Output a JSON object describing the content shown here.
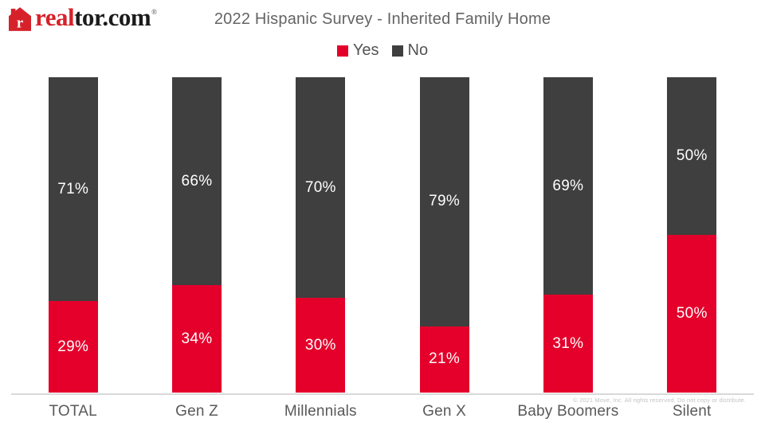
{
  "header": {
    "logo": {
      "icon_letter": "r",
      "brand_red": "real",
      "brand_black": "tor.com",
      "trademark": "®",
      "logo_color": "#d6212a"
    },
    "title": "2022 Hispanic Survey - Inherited Family Home"
  },
  "legend": {
    "items": [
      {
        "label": "Yes",
        "color": "#e4002b"
      },
      {
        "label": "No",
        "color": "#3f3f3f"
      }
    ]
  },
  "chart_data": {
    "type": "bar",
    "stacked": true,
    "orientation": "vertical",
    "title": "2022 Hispanic Survey - Inherited Family Home",
    "categories": [
      "TOTAL",
      "Gen Z",
      "Millennials",
      "Gen X",
      "Baby Boomers",
      "Silent"
    ],
    "series": [
      {
        "name": "Yes",
        "color": "#e4002b",
        "values": [
          29,
          34,
          30,
          21,
          31,
          50
        ],
        "display_values": [
          "29%",
          "34%",
          "30%",
          "21%",
          "31%",
          "50%"
        ]
      },
      {
        "name": "No",
        "color": "#3f3f3f",
        "values": [
          71,
          66,
          70,
          79,
          69,
          50
        ],
        "display_values": [
          "71%",
          "66%",
          "70%",
          "79%",
          "69%",
          "50%"
        ]
      }
    ],
    "ylim": [
      0,
      100
    ],
    "value_format": "percent",
    "grid": false,
    "legend_position": "top",
    "value_label_color": "#ffffff"
  },
  "footer": {
    "copyright": "© 2021 Move, Inc. All rights reserved. Do not copy or distribute."
  }
}
